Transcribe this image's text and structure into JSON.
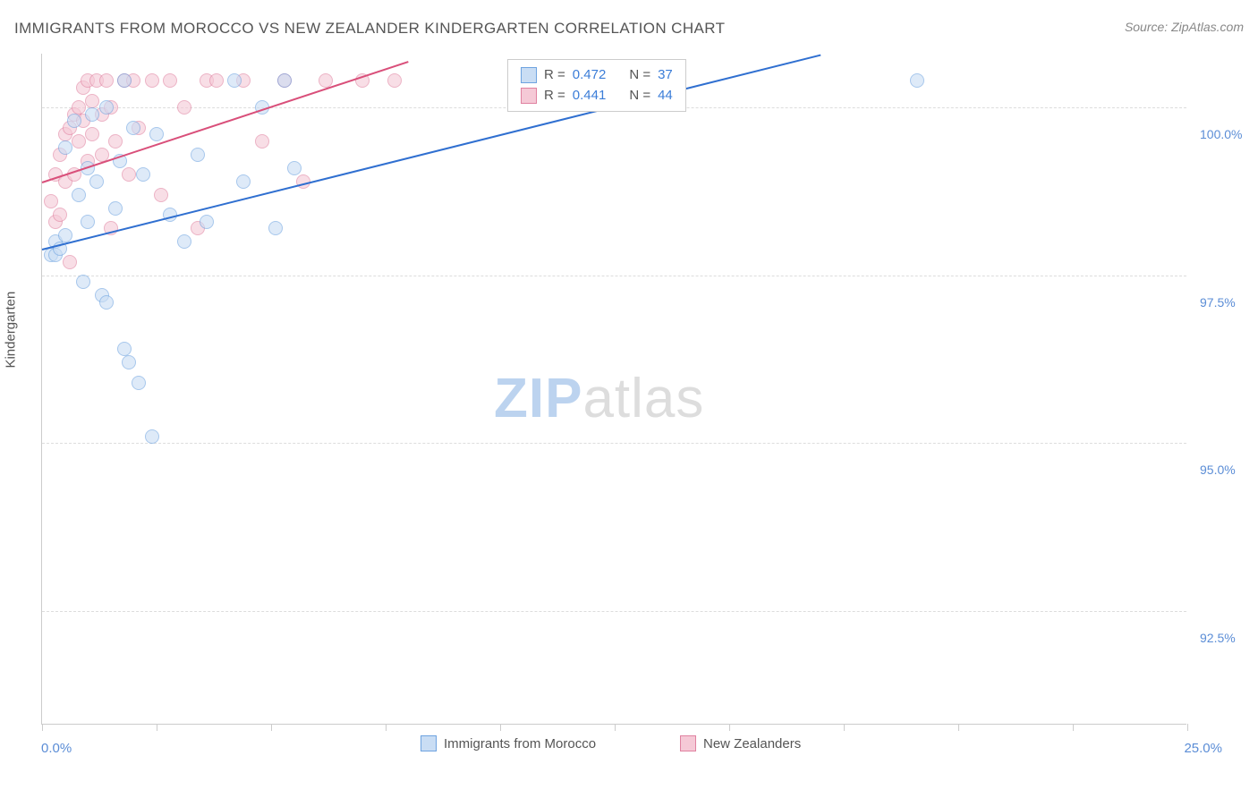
{
  "title": "IMMIGRANTS FROM MOROCCO VS NEW ZEALANDER KINDERGARTEN CORRELATION CHART",
  "source_prefix": "Source: ",
  "source_name": "ZipAtlas.com",
  "ylabel": "Kindergarten",
  "watermark": {
    "zip": "ZIP",
    "atlas": "atlas",
    "zip_color": "#bcd3ef",
    "atlas_color": "#dddddd"
  },
  "chart": {
    "type": "scatter",
    "background_color": "#ffffff",
    "grid_color": "#dddddd",
    "axis_color": "#cccccc",
    "xlim": [
      0.0,
      25.0
    ],
    "ylim": [
      90.8,
      100.8
    ],
    "x_ticks": [
      0.0,
      2.5,
      5.0,
      7.5,
      10.0,
      12.5,
      15.0,
      17.5,
      20.0,
      22.5,
      25.0
    ],
    "x_tick_labels": {
      "0": "0.0%",
      "25": "25.0%"
    },
    "y_grid": [
      92.5,
      95.0,
      97.5,
      100.0
    ],
    "y_tick_labels": [
      "92.5%",
      "95.0%",
      "97.5%",
      "100.0%"
    ],
    "point_radius": 8,
    "point_stroke_width": 1.5,
    "series": [
      {
        "name": "Immigrants from Morocco",
        "fill": "#c9ddf4",
        "stroke": "#6ea3e0",
        "fill_opacity": 0.6,
        "r_value": "0.472",
        "n_value": "37",
        "trend": {
          "x1": 0.0,
          "y1": 97.9,
          "x2": 17.0,
          "y2": 100.8,
          "color": "#2f6fd0",
          "width": 2
        },
        "points": [
          [
            0.2,
            97.8
          ],
          [
            0.3,
            98.0
          ],
          [
            0.3,
            97.8
          ],
          [
            0.4,
            97.9
          ],
          [
            0.5,
            98.1
          ],
          [
            0.5,
            99.4
          ],
          [
            0.7,
            99.8
          ],
          [
            0.8,
            98.7
          ],
          [
            0.9,
            97.4
          ],
          [
            1.0,
            99.1
          ],
          [
            1.0,
            98.3
          ],
          [
            1.1,
            99.9
          ],
          [
            1.2,
            98.9
          ],
          [
            1.3,
            97.2
          ],
          [
            1.4,
            100.0
          ],
          [
            1.4,
            97.1
          ],
          [
            1.6,
            98.5
          ],
          [
            1.7,
            99.2
          ],
          [
            1.8,
            96.4
          ],
          [
            1.8,
            100.4
          ],
          [
            1.9,
            96.2
          ],
          [
            2.0,
            99.7
          ],
          [
            2.1,
            95.9
          ],
          [
            2.2,
            99.0
          ],
          [
            2.4,
            95.1
          ],
          [
            2.5,
            99.6
          ],
          [
            2.8,
            98.4
          ],
          [
            3.1,
            98.0
          ],
          [
            3.4,
            99.3
          ],
          [
            3.6,
            98.3
          ],
          [
            4.2,
            100.4
          ],
          [
            4.4,
            98.9
          ],
          [
            4.8,
            100.0
          ],
          [
            5.1,
            98.2
          ],
          [
            5.3,
            100.4
          ],
          [
            5.5,
            99.1
          ],
          [
            19.1,
            100.4
          ]
        ]
      },
      {
        "name": "New Zealanders",
        "fill": "#f5c9d6",
        "stroke": "#e081a0",
        "fill_opacity": 0.6,
        "r_value": "0.441",
        "n_value": "44",
        "trend": {
          "x1": 0.0,
          "y1": 98.9,
          "x2": 8.0,
          "y2": 100.7,
          "color": "#d94f7a",
          "width": 2
        },
        "points": [
          [
            0.2,
            98.6
          ],
          [
            0.3,
            98.3
          ],
          [
            0.3,
            99.0
          ],
          [
            0.4,
            98.4
          ],
          [
            0.4,
            99.3
          ],
          [
            0.5,
            99.6
          ],
          [
            0.5,
            98.9
          ],
          [
            0.6,
            99.7
          ],
          [
            0.6,
            97.7
          ],
          [
            0.7,
            99.0
          ],
          [
            0.7,
            99.9
          ],
          [
            0.8,
            99.5
          ],
          [
            0.8,
            100.0
          ],
          [
            0.9,
            99.8
          ],
          [
            0.9,
            100.3
          ],
          [
            1.0,
            99.2
          ],
          [
            1.0,
            100.4
          ],
          [
            1.1,
            99.6
          ],
          [
            1.1,
            100.1
          ],
          [
            1.2,
            100.4
          ],
          [
            1.3,
            99.3
          ],
          [
            1.3,
            99.9
          ],
          [
            1.4,
            100.4
          ],
          [
            1.5,
            98.2
          ],
          [
            1.5,
            100.0
          ],
          [
            1.6,
            99.5
          ],
          [
            1.8,
            100.4
          ],
          [
            1.9,
            99.0
          ],
          [
            2.0,
            100.4
          ],
          [
            2.1,
            99.7
          ],
          [
            2.4,
            100.4
          ],
          [
            2.6,
            98.7
          ],
          [
            2.8,
            100.4
          ],
          [
            3.1,
            100.0
          ],
          [
            3.4,
            98.2
          ],
          [
            3.6,
            100.4
          ],
          [
            3.8,
            100.4
          ],
          [
            4.4,
            100.4
          ],
          [
            4.8,
            99.5
          ],
          [
            5.3,
            100.4
          ],
          [
            5.7,
            98.9
          ],
          [
            6.2,
            100.4
          ],
          [
            7.0,
            100.4
          ],
          [
            7.7,
            100.4
          ]
        ]
      }
    ]
  },
  "stat_box": {
    "r_label": "R =",
    "n_label": "N ="
  },
  "bottom_legend": [
    {
      "label": "Immigrants from Morocco"
    },
    {
      "label": "New Zealanders"
    }
  ]
}
